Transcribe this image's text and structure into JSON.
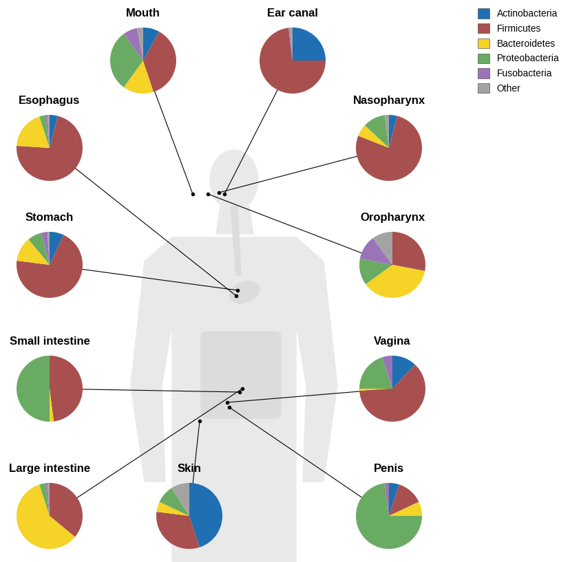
{
  "chart_data": [
    {
      "type": "pie",
      "title": "Mouth",
      "legend": "upper right",
      "categories": [
        "Actinobacteria",
        "Firmicutes",
        "Bacteroidetes",
        "Proteobacteria",
        "Fusobacteria",
        "Other"
      ],
      "values": [
        8,
        37,
        15,
        30,
        7,
        3
      ],
      "colors": [
        "#1f6fb2",
        "#a8504f",
        "#f5d327",
        "#6aab63",
        "#9b74b8",
        "#a3a3a3"
      ]
    },
    {
      "type": "pie",
      "title": "Ear canal",
      "categories": [
        "Actinobacteria",
        "Firmicutes",
        "Bacteroidetes",
        "Proteobacteria",
        "Fusobacteria",
        "Other"
      ],
      "values": [
        25,
        73,
        0,
        0,
        0.5,
        1.5
      ],
      "colors": [
        "#1f6fb2",
        "#a8504f",
        "#f5d327",
        "#6aab63",
        "#9b74b8",
        "#a3a3a3"
      ]
    },
    {
      "type": "pie",
      "title": "Esophagus",
      "categories": [
        "Actinobacteria",
        "Firmicutes",
        "Bacteroidetes",
        "Proteobacteria",
        "Fusobacteria",
        "Other"
      ],
      "values": [
        4,
        72,
        19,
        3,
        1,
        1
      ],
      "colors": [
        "#1f6fb2",
        "#a8504f",
        "#f5d327",
        "#6aab63",
        "#9b74b8",
        "#a3a3a3"
      ]
    },
    {
      "type": "pie",
      "title": "Nasopharynx",
      "categories": [
        "Actinobacteria",
        "Firmicutes",
        "Bacteroidetes",
        "Proteobacteria",
        "Fusobacteria",
        "Other"
      ],
      "values": [
        4,
        77,
        6,
        11,
        0,
        2
      ],
      "colors": [
        "#1f6fb2",
        "#a8504f",
        "#f5d327",
        "#6aab63",
        "#9b74b8",
        "#a3a3a3"
      ]
    },
    {
      "type": "pie",
      "title": "Stomach",
      "categories": [
        "Actinobacteria",
        "Firmicutes",
        "Bacteroidetes",
        "Proteobacteria",
        "Fusobacteria",
        "Other"
      ],
      "values": [
        7,
        70,
        12,
        7,
        3,
        1
      ],
      "colors": [
        "#1f6fb2",
        "#a8504f",
        "#f5d327",
        "#6aab63",
        "#9b74b8",
        "#a3a3a3"
      ]
    },
    {
      "type": "pie",
      "title": "Oropharynx",
      "categories": [
        "Actinobacteria",
        "Firmicutes",
        "Bacteroidetes",
        "Proteobacteria",
        "Fusobacteria",
        "Other"
      ],
      "values": [
        0,
        28,
        37,
        13,
        12,
        10
      ],
      "colors": [
        "#1f6fb2",
        "#a8504f",
        "#f5d327",
        "#6aab63",
        "#9b74b8",
        "#a3a3a3"
      ]
    },
    {
      "type": "pie",
      "title": "Small intestine",
      "categories": [
        "Actinobacteria",
        "Firmicutes",
        "Bacteroidetes",
        "Proteobacteria",
        "Fusobacteria",
        "Other"
      ],
      "values": [
        0,
        48,
        2,
        50,
        0,
        0
      ],
      "colors": [
        "#1f6fb2",
        "#a8504f",
        "#f5d327",
        "#6aab63",
        "#9b74b8",
        "#a3a3a3"
      ]
    },
    {
      "type": "pie",
      "title": "Vagina",
      "categories": [
        "Actinobacteria",
        "Firmicutes",
        "Bacteroidetes",
        "Proteobacteria",
        "Fusobacteria",
        "Other"
      ],
      "values": [
        12,
        62,
        1,
        20,
        5,
        0
      ],
      "colors": [
        "#1f6fb2",
        "#a8504f",
        "#f5d327",
        "#6aab63",
        "#9b74b8",
        "#a3a3a3"
      ]
    },
    {
      "type": "pie",
      "title": "Large intestine",
      "categories": [
        "Actinobacteria",
        "Firmicutes",
        "Bacteroidetes",
        "Proteobacteria",
        "Fusobacteria",
        "Other"
      ],
      "values": [
        0,
        36,
        59,
        3,
        1,
        1
      ],
      "colors": [
        "#1f6fb2",
        "#a8504f",
        "#f5d327",
        "#6aab63",
        "#9b74b8",
        "#a3a3a3"
      ]
    },
    {
      "type": "pie",
      "title": "Skin",
      "categories": [
        "Actinobacteria",
        "Firmicutes",
        "Bacteroidetes",
        "Proteobacteria",
        "Fusobacteria",
        "Other"
      ],
      "values": [
        45,
        32,
        5,
        9,
        0,
        9
      ],
      "colors": [
        "#1f6fb2",
        "#a8504f",
        "#f5d327",
        "#6aab63",
        "#9b74b8",
        "#a3a3a3"
      ]
    },
    {
      "type": "pie",
      "title": "Penis",
      "categories": [
        "Actinobacteria",
        "Firmicutes",
        "Bacteroidetes",
        "Proteobacteria",
        "Fusobacteria",
        "Other"
      ],
      "values": [
        5,
        13,
        7,
        73,
        2,
        0
      ],
      "colors": [
        "#1f6fb2",
        "#a8504f",
        "#f5d327",
        "#6aab63",
        "#9b74b8",
        "#a3a3a3"
      ]
    }
  ]
}
